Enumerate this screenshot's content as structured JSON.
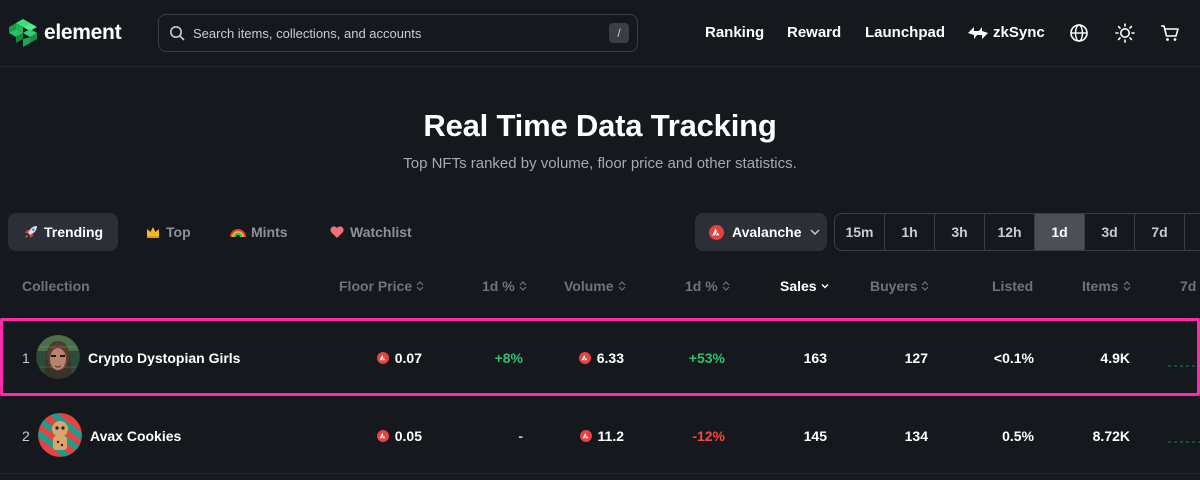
{
  "brand": {
    "name": "element"
  },
  "search": {
    "placeholder": "Search items, collections, and accounts",
    "shortcut": "/"
  },
  "nav": {
    "ranking": "Ranking",
    "reward": "Reward",
    "launchpad": "Launchpad",
    "zksync": "zkSync"
  },
  "hero": {
    "title": "Real Time Data Tracking",
    "subtitle": "Top NFTs ranked by volume, floor price and other statistics."
  },
  "tabs": [
    {
      "label": "Trending",
      "icon": "rocket-icon",
      "active": true
    },
    {
      "label": "Top",
      "icon": "crown-icon",
      "active": false
    },
    {
      "label": "Mints",
      "icon": "rainbow-icon",
      "active": false
    },
    {
      "label": "Watchlist",
      "icon": "heart-icon",
      "active": false
    }
  ],
  "chain": {
    "selected": "Avalanche",
    "color": "#e84142"
  },
  "time_ranges": [
    "15m",
    "1h",
    "3h",
    "12h",
    "1d",
    "3d",
    "7d"
  ],
  "active_time_range": "1d",
  "columns": {
    "collection": "Collection",
    "floor_price": "Floor Price",
    "floor_change": "1d %",
    "volume": "Volume",
    "volume_change": "1d %",
    "sales": "Sales",
    "buyers": "Buyers",
    "listed": "Listed",
    "items": "Items",
    "spark": "7d"
  },
  "rows": [
    {
      "rank": "1",
      "name": "Crypto Dystopian Girls",
      "floor_price": "0.07",
      "floor_change": "+8%",
      "volume": "6.33",
      "volume_change": "+53%",
      "sales": "163",
      "buyers": "127",
      "listed": "<0.1%",
      "items": "4.9K"
    },
    {
      "rank": "2",
      "name": "Avax Cookies",
      "floor_price": "0.05",
      "floor_change": "-",
      "volume": "11.2",
      "volume_change": "-12%",
      "sales": "145",
      "buyers": "134",
      "listed": "0.5%",
      "items": "8.72K"
    }
  ],
  "colors": {
    "positive": "#2fbf71",
    "negative": "#f0484a",
    "highlight": "#ff2aa8"
  }
}
